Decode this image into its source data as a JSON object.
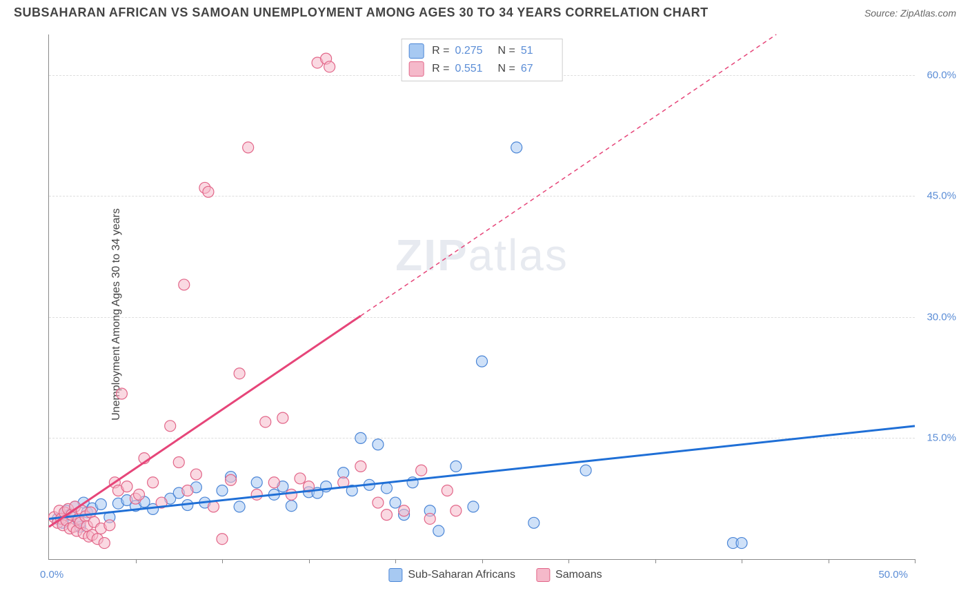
{
  "title": "SUBSAHARAN AFRICAN VS SAMOAN UNEMPLOYMENT AMONG AGES 30 TO 34 YEARS CORRELATION CHART",
  "source": "Source: ZipAtlas.com",
  "y_axis_label": "Unemployment Among Ages 30 to 34 years",
  "watermark_bold": "ZIP",
  "watermark_light": "atlas",
  "chart": {
    "type": "scatter",
    "xlim": [
      0,
      50
    ],
    "ylim": [
      0,
      65
    ],
    "y_ticks": [
      15.0,
      30.0,
      45.0,
      60.0
    ],
    "y_tick_labels": [
      "15.0%",
      "30.0%",
      "45.0%",
      "60.0%"
    ],
    "x_tick_positions": [
      5,
      10,
      15,
      20,
      25,
      30,
      35,
      40,
      45,
      50
    ],
    "x_origin_label": "0.0%",
    "x_max_label": "50.0%",
    "grid_color": "#dddddd",
    "axis_color": "#888888",
    "background_color": "#ffffff",
    "tick_label_color": "#5b8dd6",
    "marker_radius": 8,
    "marker_opacity": 0.55,
    "marker_stroke_width": 1.2,
    "trend_line_width": 3,
    "trend_dash": "6,5"
  },
  "series": [
    {
      "name": "Sub-Saharan Africans",
      "short": "subsaharan",
      "fill_color": "#a7c9f2",
      "stroke_color": "#4a85d6",
      "line_color": "#1f6fd6",
      "R": "0.275",
      "N": "51",
      "trend": {
        "x1": 0,
        "y1": 5.0,
        "x2": 50,
        "y2": 16.5,
        "solid_until": 50
      },
      "points": [
        [
          0.5,
          5.0
        ],
        [
          0.8,
          4.5
        ],
        [
          1.0,
          6.0
        ],
        [
          1.2,
          5.5
        ],
        [
          1.5,
          6.5
        ],
        [
          1.7,
          4.8
        ],
        [
          2.0,
          7.0
        ],
        [
          2.2,
          5.8
        ],
        [
          2.5,
          6.3
        ],
        [
          3.0,
          6.8
        ],
        [
          3.5,
          5.2
        ],
        [
          4.0,
          6.9
        ],
        [
          4.5,
          7.3
        ],
        [
          5.0,
          6.6
        ],
        [
          5.5,
          7.1
        ],
        [
          6.0,
          6.2
        ],
        [
          7.0,
          7.5
        ],
        [
          7.5,
          8.2
        ],
        [
          8.0,
          6.7
        ],
        [
          8.5,
          8.9
        ],
        [
          9.0,
          7.0
        ],
        [
          10.0,
          8.5
        ],
        [
          10.5,
          10.2
        ],
        [
          11.0,
          6.5
        ],
        [
          12.0,
          9.5
        ],
        [
          13.0,
          8.0
        ],
        [
          13.5,
          9.0
        ],
        [
          14.0,
          6.6
        ],
        [
          15.0,
          8.3
        ],
        [
          15.5,
          8.2
        ],
        [
          16.0,
          9.0
        ],
        [
          17.0,
          10.7
        ],
        [
          17.5,
          8.5
        ],
        [
          18.0,
          15.0
        ],
        [
          18.5,
          9.2
        ],
        [
          19.0,
          14.2
        ],
        [
          19.5,
          8.8
        ],
        [
          20.0,
          7.0
        ],
        [
          20.5,
          5.5
        ],
        [
          21.0,
          9.5
        ],
        [
          22.0,
          6.0
        ],
        [
          22.5,
          3.5
        ],
        [
          23.5,
          11.5
        ],
        [
          24.5,
          6.5
        ],
        [
          25.0,
          24.5
        ],
        [
          27.0,
          51.0
        ],
        [
          28.0,
          4.5
        ],
        [
          31.0,
          11.0
        ],
        [
          39.5,
          2.0
        ],
        [
          40.0,
          2.0
        ],
        [
          1.8,
          4.0
        ]
      ]
    },
    {
      "name": "Samoans",
      "short": "samoans",
      "fill_color": "#f5b9ca",
      "stroke_color": "#e26588",
      "line_color": "#e64579",
      "R": "0.551",
      "N": "67",
      "trend": {
        "x1": 0,
        "y1": 4.0,
        "x2": 42,
        "y2": 65.0,
        "solid_until": 18
      },
      "points": [
        [
          0.3,
          5.2
        ],
        [
          0.5,
          4.5
        ],
        [
          0.6,
          6.0
        ],
        [
          0.7,
          5.0
        ],
        [
          0.8,
          4.2
        ],
        [
          0.9,
          5.8
        ],
        [
          1.0,
          4.8
        ],
        [
          1.1,
          6.2
        ],
        [
          1.2,
          3.8
        ],
        [
          1.3,
          5.5
        ],
        [
          1.4,
          4.0
        ],
        [
          1.5,
          6.5
        ],
        [
          1.6,
          3.5
        ],
        [
          1.7,
          5.0
        ],
        [
          1.8,
          4.5
        ],
        [
          1.9,
          6.0
        ],
        [
          2.0,
          3.2
        ],
        [
          2.1,
          5.3
        ],
        [
          2.2,
          4.1
        ],
        [
          2.3,
          2.8
        ],
        [
          2.4,
          5.8
        ],
        [
          2.5,
          3.0
        ],
        [
          2.6,
          4.6
        ],
        [
          2.8,
          2.5
        ],
        [
          3.0,
          3.8
        ],
        [
          3.2,
          2.0
        ],
        [
          3.5,
          4.2
        ],
        [
          3.8,
          9.5
        ],
        [
          4.0,
          8.5
        ],
        [
          4.2,
          20.5
        ],
        [
          4.5,
          9.0
        ],
        [
          5.0,
          7.5
        ],
        [
          5.2,
          8.0
        ],
        [
          5.5,
          12.5
        ],
        [
          6.0,
          9.5
        ],
        [
          6.5,
          7.0
        ],
        [
          7.0,
          16.5
        ],
        [
          7.5,
          12.0
        ],
        [
          7.8,
          34.0
        ],
        [
          8.0,
          8.5
        ],
        [
          8.5,
          10.5
        ],
        [
          9.0,
          46.0
        ],
        [
          9.2,
          45.5
        ],
        [
          9.5,
          6.5
        ],
        [
          10.0,
          2.5
        ],
        [
          10.5,
          9.8
        ],
        [
          11.0,
          23.0
        ],
        [
          11.5,
          51.0
        ],
        [
          12.0,
          8.0
        ],
        [
          12.5,
          17.0
        ],
        [
          13.0,
          9.5
        ],
        [
          13.5,
          17.5
        ],
        [
          14.0,
          8.0
        ],
        [
          14.5,
          10.0
        ],
        [
          15.0,
          9.0
        ],
        [
          15.5,
          61.5
        ],
        [
          16.0,
          62.0
        ],
        [
          16.2,
          61.0
        ],
        [
          17.0,
          9.5
        ],
        [
          18.0,
          11.5
        ],
        [
          19.0,
          7.0
        ],
        [
          19.5,
          5.5
        ],
        [
          20.5,
          6.0
        ],
        [
          21.5,
          11.0
        ],
        [
          22.0,
          5.0
        ],
        [
          23.0,
          8.5
        ],
        [
          23.5,
          6.0
        ]
      ]
    }
  ],
  "stats_box_labels": {
    "R": "R =",
    "N": "N ="
  },
  "bottom_legend": [
    {
      "label": "Sub-Saharan Africans",
      "fill": "#a7c9f2",
      "stroke": "#4a85d6"
    },
    {
      "label": "Samoans",
      "fill": "#f5b9ca",
      "stroke": "#e26588"
    }
  ]
}
